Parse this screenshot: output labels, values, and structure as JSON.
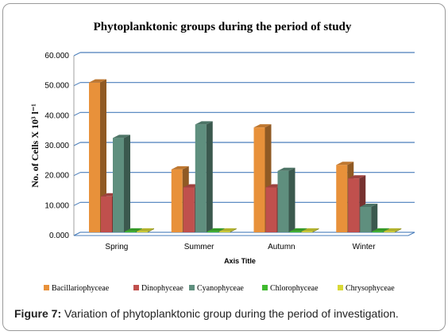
{
  "chart_data": {
    "type": "bar",
    "title": "Phytoplanktonic groups during the period of study",
    "ylabel": "No. of Cells X 10³ l⁻¹",
    "xlabel": "Axis Title",
    "categories": [
      "Spring",
      "Summer",
      "Autumn",
      "Winter"
    ],
    "ylim": [
      0,
      60
    ],
    "yticks": [
      "0.000",
      "10.000",
      "20.000",
      "30.000",
      "40.000",
      "50.000",
      "60.000"
    ],
    "grid": true,
    "legend": "bottom",
    "series": [
      {
        "name": "Bacillariophyceae",
        "values": [
          50,
          21,
          35,
          22.5
        ],
        "color": "#e8913a"
      },
      {
        "name": "Dinophyceae",
        "values": [
          12,
          15,
          15,
          18
        ],
        "color": "#c0504d"
      },
      {
        "name": "Cyanophyceae",
        "values": [
          31.5,
          36,
          20.5,
          8.5
        ],
        "color": "#5f8f7e"
      },
      {
        "name": "Chlorophyceae",
        "values": [
          0.3,
          0.3,
          0.3,
          0.3
        ],
        "color": "#3fba2f"
      },
      {
        "name": "Chrysophyceae",
        "values": [
          0.3,
          0.3,
          0.3,
          0.3
        ],
        "color": "#d9d936"
      }
    ]
  },
  "caption": {
    "label": "Figure 7:",
    "text": " Variation of phytoplanktonic group during the period of investigation."
  }
}
